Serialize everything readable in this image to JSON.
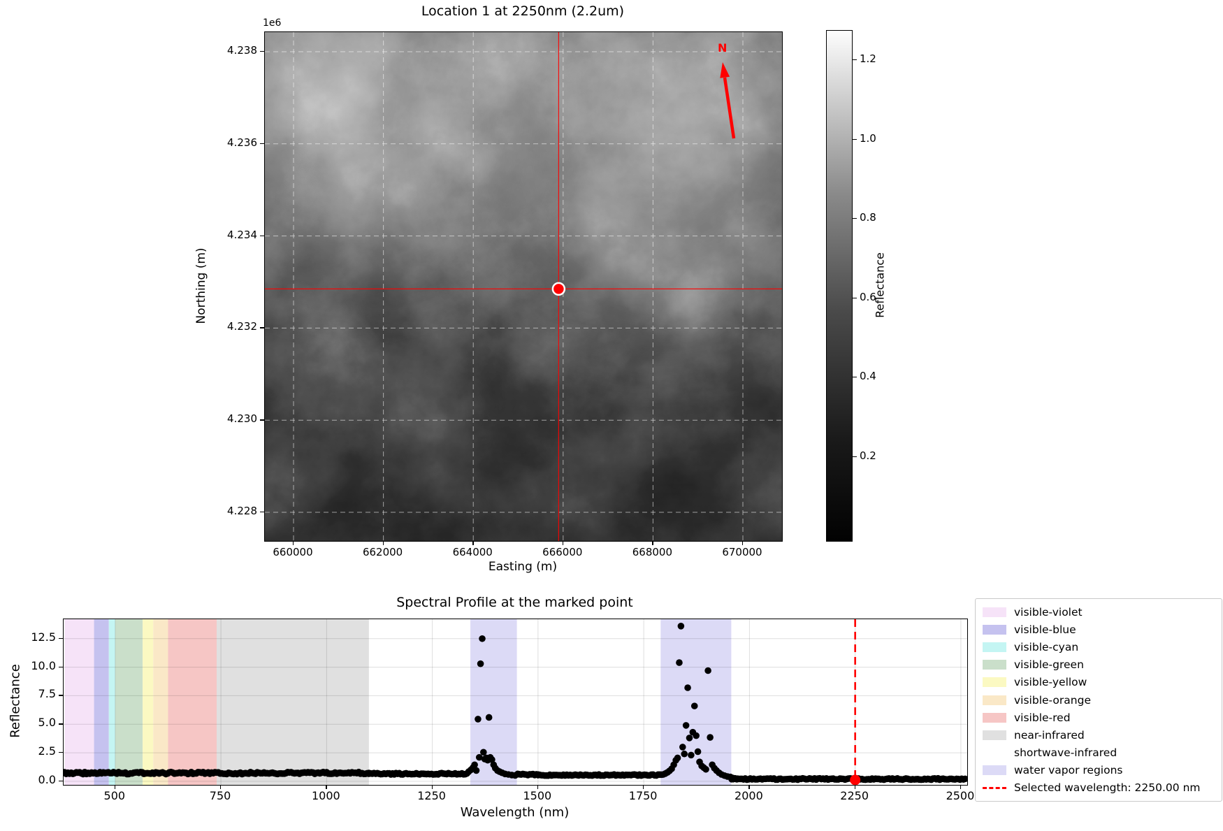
{
  "chart_data": [
    {
      "type": "heatmap",
      "title": "Location 1 at 2250nm (2.2um)",
      "axis_offset_label": "1e6",
      "xlabel": "Easting (m)",
      "ylabel": "Northing (m)",
      "x_ticks": [
        {
          "label": "660000",
          "value": 660000
        },
        {
          "label": "662000",
          "value": 662000
        },
        {
          "label": "664000",
          "value": 664000
        },
        {
          "label": "666000",
          "value": 666000
        },
        {
          "label": "668000",
          "value": 668000
        },
        {
          "label": "670000",
          "value": 670000
        }
      ],
      "y_ticks": [
        {
          "label": "4.238",
          "value": 4238000
        },
        {
          "label": "4.236",
          "value": 4236000
        },
        {
          "label": "4.234",
          "value": 4234000
        },
        {
          "label": "4.232",
          "value": 4232000
        },
        {
          "label": "4.230",
          "value": 4230000
        },
        {
          "label": "4.228",
          "value": 4228000
        }
      ],
      "x_range": [
        659362,
        670871
      ],
      "y_range": [
        4227378,
        4238425
      ],
      "grid": true,
      "marked_point": {
        "easting": 665900,
        "northing": 4232850
      },
      "crosshair_color": "#ff0000",
      "north_arrow_label": "N",
      "north_arrow_color": "#ff0000",
      "colorbar": {
        "label": "Reflectance",
        "ticks": [
          "0.2",
          "0.4",
          "0.6",
          "0.8",
          "1.0",
          "1.2"
        ],
        "range": [
          -0.012,
          1.274
        ]
      }
    },
    {
      "type": "scatter",
      "title": "Spectral Profile at the marked point",
      "xlabel": "Wavelength (nm)",
      "ylabel": "Reflectance",
      "x_ticks": [
        500,
        750,
        1000,
        1250,
        1500,
        1750,
        2000,
        2250,
        2500
      ],
      "y_ticks": [
        "0.0",
        "2.5",
        "5.0",
        "7.5",
        "10.0",
        "12.5"
      ],
      "x_range": [
        378,
        2515
      ],
      "y_range": [
        -0.31,
        14.2
      ],
      "grid": true,
      "marker_color": "#000000",
      "bands": [
        {
          "name": "visible-violet",
          "from": 380,
          "to": 450,
          "color": "#f6e3f8"
        },
        {
          "name": "visible-blue",
          "from": 450,
          "to": 485,
          "color": "#c5c2ef"
        },
        {
          "name": "visible-cyan",
          "from": 485,
          "to": 500,
          "color": "#c4f5f3"
        },
        {
          "name": "visible-green",
          "from": 500,
          "to": 565,
          "color": "#cadfca"
        },
        {
          "name": "visible-yellow",
          "from": 565,
          "to": 590,
          "color": "#fbf9c2"
        },
        {
          "name": "visible-orange",
          "from": 590,
          "to": 625,
          "color": "#fae8c7"
        },
        {
          "name": "visible-red",
          "from": 625,
          "to": 740,
          "color": "#f6c6c5"
        },
        {
          "name": "near-infrared",
          "from": 740,
          "to": 1100,
          "color": "#e0e0e0"
        },
        {
          "name": "shortwave-infrared",
          "from": 1100,
          "to": 2510,
          "color": "#ffffff"
        }
      ],
      "water_vapor_regions": [
        {
          "from": 1340,
          "to": 1450
        },
        {
          "from": 1790,
          "to": 1957
        }
      ],
      "water_vapor_color": "#dcdaf6",
      "baseline_segments": [
        {
          "from": 380,
          "to": 1100,
          "value": 0.72,
          "amp": 0.09
        },
        {
          "from": 1100,
          "to": 1332,
          "value": 0.66,
          "amp": 0.06
        },
        {
          "from": 1452,
          "to": 1500,
          "value": 0.6,
          "amp": 0.05
        },
        {
          "from": 1500,
          "to": 1792,
          "value": 0.55,
          "amp": 0.05
        },
        {
          "from": 1958,
          "to": 2510,
          "value": 0.2,
          "amp": 0.06
        }
      ],
      "peak_points": [
        [
          1336,
          0.85
        ],
        [
          1341,
          1.0
        ],
        [
          1346,
          1.2
        ],
        [
          1350,
          1.45
        ],
        [
          1354,
          0.95
        ],
        [
          1358,
          5.45
        ],
        [
          1361,
          2.1
        ],
        [
          1364,
          10.3
        ],
        [
          1368,
          12.5
        ],
        [
          1371,
          2.55
        ],
        [
          1374,
          1.95
        ],
        [
          1378,
          2.05
        ],
        [
          1381,
          1.85
        ],
        [
          1384,
          5.6
        ],
        [
          1387,
          2.1
        ],
        [
          1391,
          1.9
        ],
        [
          1395,
          1.45
        ],
        [
          1399,
          1.15
        ],
        [
          1404,
          0.95
        ],
        [
          1409,
          0.85
        ],
        [
          1415,
          0.75
        ],
        [
          1422,
          0.65
        ],
        [
          1430,
          0.6
        ],
        [
          1438,
          0.55
        ],
        [
          1446,
          0.52
        ],
        [
          1796,
          0.6
        ],
        [
          1801,
          0.68
        ],
        [
          1806,
          0.78
        ],
        [
          1811,
          0.92
        ],
        [
          1816,
          1.1
        ],
        [
          1821,
          1.45
        ],
        [
          1826,
          1.85
        ],
        [
          1830,
          2.05
        ],
        [
          1834,
          10.4
        ],
        [
          1838,
          13.6
        ],
        [
          1842,
          3.0
        ],
        [
          1846,
          2.4
        ],
        [
          1850,
          4.9
        ],
        [
          1854,
          8.2
        ],
        [
          1858,
          3.8
        ],
        [
          1862,
          2.3
        ],
        [
          1866,
          4.3
        ],
        [
          1870,
          6.6
        ],
        [
          1874,
          4.0
        ],
        [
          1878,
          2.6
        ],
        [
          1882,
          1.7
        ],
        [
          1887,
          1.35
        ],
        [
          1892,
          1.2
        ],
        [
          1897,
          1.05
        ],
        [
          1902,
          9.7
        ],
        [
          1907,
          3.85
        ],
        [
          1912,
          1.45
        ],
        [
          1917,
          1.15
        ],
        [
          1922,
          0.95
        ],
        [
          1928,
          0.75
        ],
        [
          1934,
          0.6
        ],
        [
          1941,
          0.5
        ],
        [
          1948,
          0.42
        ],
        [
          1955,
          0.38
        ],
        [
          1960,
          0.3
        ],
        [
          1966,
          0.26
        ],
        [
          1972,
          0.23
        ]
      ],
      "selected_wavelength": {
        "value_nm": 2250,
        "point_reflectance": 0.12,
        "color": "#ff0000",
        "label": "Selected wavelength: 2250.00 nm"
      },
      "legend_items": [
        {
          "label": "visible-violet",
          "swatch": "#f6e3f8",
          "kind": "patch"
        },
        {
          "label": "visible-blue",
          "swatch": "#c5c2ef",
          "kind": "patch"
        },
        {
          "label": "visible-cyan",
          "swatch": "#c4f5f3",
          "kind": "patch"
        },
        {
          "label": "visible-green",
          "swatch": "#cadfca",
          "kind": "patch"
        },
        {
          "label": "visible-yellow",
          "swatch": "#fbf9c2",
          "kind": "patch"
        },
        {
          "label": "visible-orange",
          "swatch": "#fae8c7",
          "kind": "patch"
        },
        {
          "label": "visible-red",
          "swatch": "#f6c6c5",
          "kind": "patch"
        },
        {
          "label": "near-infrared",
          "swatch": "#e0e0e0",
          "kind": "patch"
        },
        {
          "label": "shortwave-infrared",
          "swatch": "#ffffff",
          "kind": "patch"
        },
        {
          "label": "water vapor regions",
          "swatch": "#dcdaf6",
          "kind": "patch"
        },
        {
          "label": "Selected wavelength: 2250.00 nm",
          "swatch": "#ff0000",
          "kind": "dashed-line"
        }
      ]
    }
  ]
}
